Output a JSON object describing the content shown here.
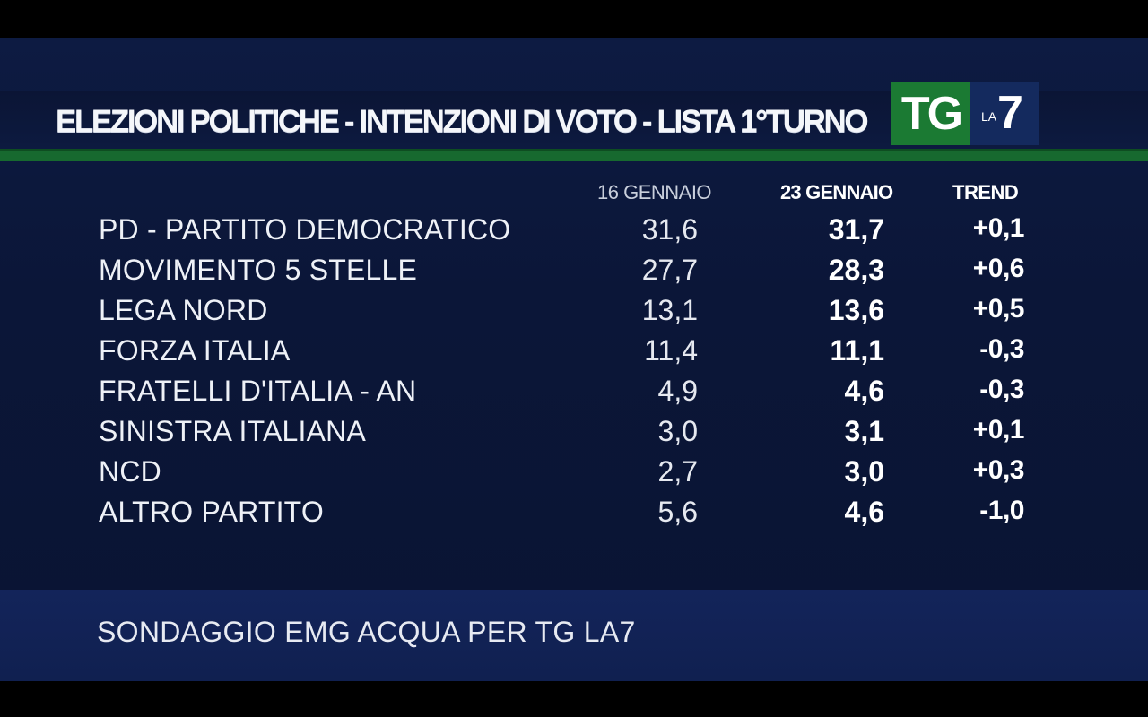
{
  "title": "ELEZIONI POLITICHE - INTENZIONI DI VOTO - LISTA 1°TURNO",
  "logo": {
    "tg": "TG",
    "la": "LA",
    "seven": "7"
  },
  "columns": {
    "date1": "16 GENNAIO",
    "date2": "23 GENNAIO",
    "trend": "TREND"
  },
  "rows": [
    {
      "party": "PD - PARTITO DEMOCRATICO",
      "v1": "31,6",
      "v2": "31,7",
      "trend": "+0,1"
    },
    {
      "party": "MOVIMENTO 5 STELLE",
      "v1": "27,7",
      "v2": "28,3",
      "trend": "+0,6"
    },
    {
      "party": "LEGA NORD",
      "v1": "13,1",
      "v2": "13,6",
      "trend": "+0,5"
    },
    {
      "party": "FORZA ITALIA",
      "v1": "11,4",
      "v2": "11,1",
      "trend": "-0,3"
    },
    {
      "party": "FRATELLI D'ITALIA - AN",
      "v1": "4,9",
      "v2": "4,6",
      "trend": "-0,3"
    },
    {
      "party": "SINISTRA ITALIANA",
      "v1": "3,0",
      "v2": "3,1",
      "trend": "+0,1"
    },
    {
      "party": "NCD",
      "v1": "2,7",
      "v2": "3,0",
      "trend": "+0,3"
    },
    {
      "party": "ALTRO PARTITO",
      "v1": "5,6",
      "v2": "4,6",
      "trend": "-1,0"
    }
  ],
  "footer": "SONDAGGIO EMG ACQUA PER TG LA7",
  "colors": {
    "accent_green": "#17692f",
    "background_navy": "#0b1638",
    "footer_navy": "#13245a"
  }
}
